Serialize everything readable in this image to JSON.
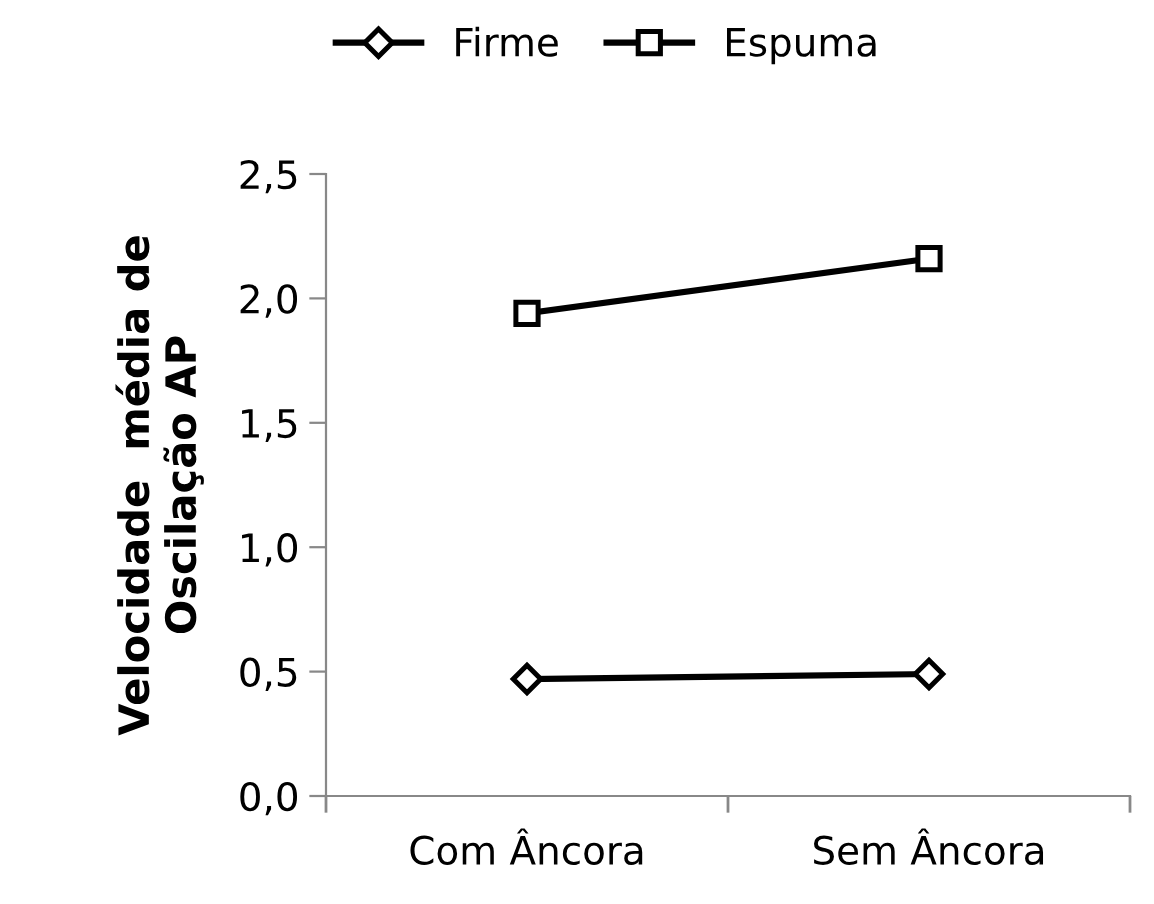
{
  "chart_data": {
    "type": "line",
    "ylabel": "Velocidade  média de\nOscilação AP",
    "categories": [
      "Com Âncora",
      "Sem Âncora"
    ],
    "series": [
      {
        "name": "Firme",
        "color": "#000000",
        "marker": "diamond",
        "values": [
          0.47,
          0.49
        ]
      },
      {
        "name": "Espuma",
        "color": "#000000",
        "marker": "square",
        "values": [
          1.94,
          2.16
        ]
      }
    ],
    "ylim": [
      0,
      2.5
    ],
    "yticks": [
      {
        "value": 0,
        "label": "0,0"
      },
      {
        "value": 0.5,
        "label": "0,5"
      },
      {
        "value": 1,
        "label": "1,0"
      },
      {
        "value": 1.5,
        "label": "1,5"
      },
      {
        "value": 2,
        "label": "2,0"
      },
      {
        "value": 2.5,
        "label": "2,5"
      }
    ],
    "grid": false,
    "legend": "top",
    "line_style": "solid"
  }
}
